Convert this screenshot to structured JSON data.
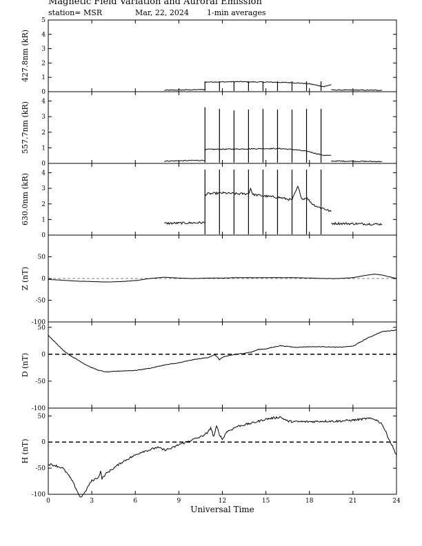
{
  "header": {
    "title": "Magnetic Field Variation and Auroral Emission",
    "station": "station= MSR",
    "date": "Mar, 22,  2024",
    "averaging": "1-min averages"
  },
  "chart_data": [
    {
      "type": "line",
      "ylabel": "427.8nm (kR)",
      "ylim": [
        0,
        5
      ],
      "yticks": [
        0,
        1,
        2,
        3,
        4,
        5
      ],
      "noise": 0.03,
      "series": [
        {
          "segments": [
            {
              "x": [
                8,
                10.8
              ],
              "y": [
                0.1,
                0.15
              ]
            },
            {
              "x": [
                10.8,
                11,
                12,
                13,
                14,
                15,
                16,
                17,
                18,
                18.5,
                19,
                19.5
              ],
              "y": [
                0.65,
                0.68,
                0.68,
                0.7,
                0.68,
                0.67,
                0.65,
                0.62,
                0.55,
                0.45,
                0.35,
                0.5
              ]
            },
            {
              "x": [
                19.5,
                23
              ],
              "y": [
                0.12,
                0.1
              ]
            }
          ]
        }
      ],
      "spikes": {
        "x": [
          10.8,
          11.8,
          12.8,
          13.8,
          14.8,
          15.8,
          16.8,
          17.8,
          18.8
        ],
        "y": [
          0.72,
          0.72,
          0.72,
          0.72,
          0.72,
          0.72,
          0.72,
          0.72,
          0.72
        ]
      }
    },
    {
      "type": "line",
      "ylabel": "557.7nm (kR)",
      "ylim": [
        0,
        4.6
      ],
      "yticks": [
        0,
        1,
        2,
        3,
        4
      ],
      "noise": 0.03,
      "series": [
        {
          "segments": [
            {
              "x": [
                8,
                10.8
              ],
              "y": [
                0.15,
                0.2
              ]
            },
            {
              "x": [
                10.8,
                11,
                13,
                15,
                16,
                17,
                18,
                18.5,
                19,
                19.5
              ],
              "y": [
                0.85,
                0.9,
                0.92,
                0.95,
                0.95,
                0.88,
                0.75,
                0.62,
                0.52,
                0.5
              ]
            },
            {
              "x": [
                19.5,
                23
              ],
              "y": [
                0.15,
                0.12
              ]
            }
          ]
        }
      ],
      "spikes": {
        "x": [
          10.8,
          11.8,
          12.8,
          13.8,
          14.8,
          15.8,
          16.8,
          17.8,
          18.8
        ],
        "y": [
          3.6,
          3.5,
          3.4,
          3.45,
          3.5,
          3.45,
          3.45,
          3.5,
          3.5
        ]
      }
    },
    {
      "type": "line",
      "ylabel": "630.0nm (kR)",
      "ylim": [
        0,
        4.6
      ],
      "yticks": [
        0,
        1,
        2,
        3,
        4
      ],
      "noise": 0.07,
      "series": [
        {
          "segments": [
            {
              "x": [
                8,
                10.8
              ],
              "y": [
                0.75,
                0.8
              ]
            },
            {
              "x": [
                10.8,
                11,
                12,
                13,
                13.8,
                13.95,
                14.1,
                15,
                16,
                16.8,
                17.2,
                17.5,
                17.8,
                18.2,
                18.6,
                19,
                19.5
              ],
              "y": [
                2.6,
                2.65,
                2.7,
                2.65,
                2.65,
                3.0,
                2.6,
                2.5,
                2.4,
                2.25,
                3.1,
                2.3,
                2.4,
                2.0,
                1.8,
                1.7,
                1.5
              ]
            },
            {
              "x": [
                19.5,
                23
              ],
              "y": [
                0.75,
                0.7
              ]
            }
          ]
        }
      ],
      "spikes": {
        "x": [
          10.8,
          11.8,
          12.8,
          13.8,
          14.8,
          15.8,
          16.8,
          17.8,
          18.8
        ],
        "y": [
          4.2,
          4.2,
          4.2,
          4.2,
          4.2,
          4.2,
          4.2,
          4.2,
          4.2
        ]
      }
    },
    {
      "type": "line",
      "ylabel": "Z (nT)",
      "ylim": [
        -100,
        100
      ],
      "yticks": [
        -100,
        -50,
        0,
        50
      ],
      "noise": 0.3,
      "zeroline": "thin-dashed",
      "series": [
        {
          "segments": [
            {
              "x": [
                0,
                1,
                2,
                3,
                4,
                5,
                6,
                7,
                8,
                9,
                10,
                11,
                12,
                13,
                14,
                15,
                16,
                17,
                18,
                19,
                20,
                21,
                22,
                22.5,
                23,
                24
              ],
              "y": [
                -2,
                -4,
                -6,
                -7,
                -8,
                -7,
                -5,
                0,
                3,
                1,
                0,
                1,
                1,
                2,
                2,
                2,
                2,
                2,
                1,
                0,
                0,
                2,
                8,
                10,
                8,
                0
              ]
            }
          ]
        }
      ]
    },
    {
      "type": "line",
      "ylabel": "D (nT)",
      "ylim": [
        -100,
        60
      ],
      "yticks": [
        -100,
        -50,
        0,
        50
      ],
      "noise": 0.6,
      "zeroline": "bold-dashed",
      "series": [
        {
          "segments": [
            {
              "x": [
                0,
                0.5,
                1,
                1.5,
                2,
                2.5,
                3,
                3.5,
                4,
                4.5,
                5,
                6,
                7,
                8,
                9,
                10,
                11,
                11.5,
                11.8,
                12,
                12.5,
                13,
                14,
                14.5,
                15,
                16,
                17,
                18,
                19,
                20,
                21,
                22,
                23,
                24
              ],
              "y": [
                35,
                22,
                8,
                -2,
                -10,
                -18,
                -25,
                -30,
                -33,
                -32,
                -31,
                -30,
                -26,
                -20,
                -16,
                -10,
                -6,
                -1,
                -10,
                -6,
                -2,
                0,
                4,
                9,
                10,
                16,
                13,
                14,
                14,
                13,
                15,
                30,
                42,
                45
              ]
            }
          ]
        }
      ]
    },
    {
      "type": "line",
      "ylabel": "H (nT)",
      "ylim": [
        -100,
        65
      ],
      "yticks": [
        -100,
        -50,
        0,
        50
      ],
      "noise": 2.0,
      "zeroline": "bold-dashed",
      "series": [
        {
          "segments": [
            {
              "x": [
                0,
                0.5,
                1,
                1.3,
                1.6,
                1.9,
                2.2,
                2.5,
                2.8,
                3,
                3.3,
                3.5,
                3.6,
                3.7,
                4,
                4.5,
                5,
                5.5,
                6,
                6.5,
                7,
                7.5,
                8,
                8.5,
                9,
                9.5,
                10,
                10.5,
                11,
                11.2,
                11.4,
                11.6,
                11.8,
                12,
                12.3,
                12.7,
                13,
                13.5,
                14,
                14.5,
                15,
                15.5,
                16,
                16.5,
                17,
                18,
                19,
                20,
                21,
                22,
                22.5,
                23,
                23.5,
                24
              ],
              "y": [
                -42,
                -45,
                -50,
                -60,
                -72,
                -88,
                -106,
                -98,
                -82,
                -74,
                -70,
                -66,
                -55,
                -70,
                -60,
                -50,
                -40,
                -32,
                -25,
                -18,
                -15,
                -10,
                -15,
                -12,
                -5,
                0,
                5,
                10,
                18,
                28,
                10,
                30,
                15,
                5,
                20,
                25,
                30,
                33,
                36,
                40,
                44,
                46,
                48,
                40,
                39,
                39,
                40,
                40,
                42,
                45,
                44,
                35,
                5,
                -25
              ]
            }
          ]
        }
      ]
    }
  ],
  "xaxis": {
    "label": "Universal Time",
    "xlim": [
      0,
      24
    ],
    "ticks": [
      0,
      3,
      6,
      9,
      12,
      15,
      18,
      21,
      24
    ]
  }
}
